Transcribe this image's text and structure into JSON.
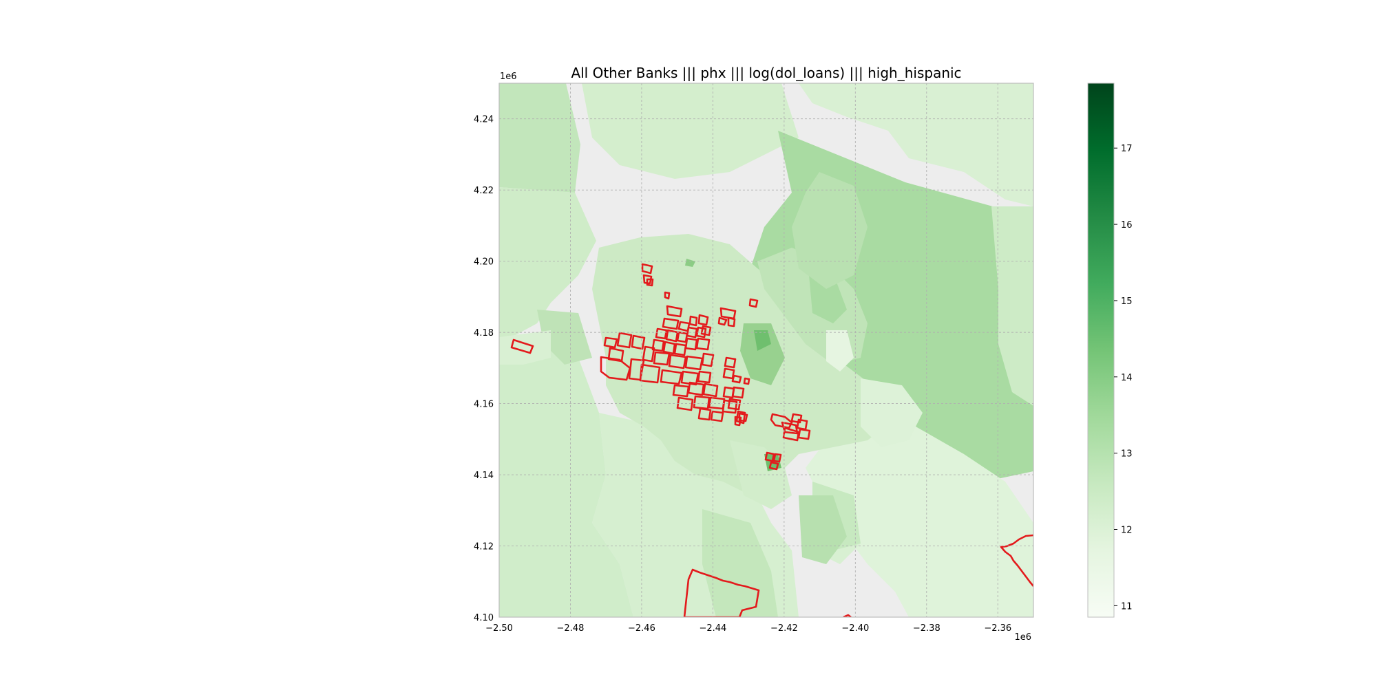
{
  "title": "All Other Banks ||| phx ||| log(dol_loans) ||| high_hispanic",
  "map": {
    "x_range": [
      -2500000,
      -2350000
    ],
    "y_range": [
      4100000,
      4250000
    ],
    "x_ticks": [
      "−2.50",
      "−2.48",
      "−2.46",
      "−2.44",
      "−2.42",
      "−2.40",
      "−2.38",
      "−2.36"
    ],
    "y_ticks": [
      "4.10",
      "4.12",
      "4.14",
      "4.16",
      "4.18",
      "4.20",
      "4.22",
      "4.24"
    ],
    "x_offset_label": "1e6",
    "y_offset_label": "1e6",
    "grid": true,
    "background_color": "#ededed",
    "highlight_outline_color": "#e31a1c"
  },
  "colorbar": {
    "cmap": "Greens",
    "range": [
      10.85,
      17.85
    ],
    "ticks": [
      "11",
      "12",
      "13",
      "14",
      "15",
      "16",
      "17"
    ],
    "colors": [
      "#f7fcf5",
      "#e5f5e0",
      "#c7e9c0",
      "#a1d99b",
      "#74c476",
      "#41ab5d",
      "#238b45",
      "#006d2c",
      "#00441b"
    ]
  }
}
